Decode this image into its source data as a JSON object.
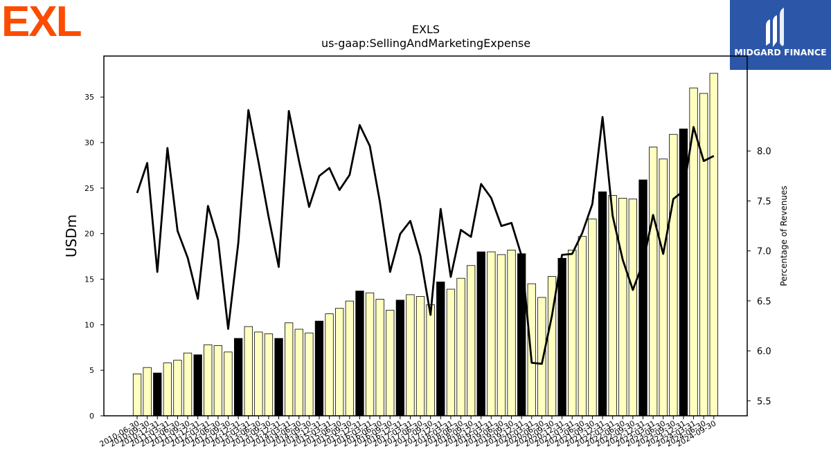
{
  "brand": {
    "company_logo_text": "EXL",
    "company_logo_color": "#fc4c02",
    "publisher_logo_text": "MIDGARD FINANCE",
    "publisher_bg_color": "#2c56a8"
  },
  "chart_data": {
    "type": "bar",
    "title": "EXLS",
    "subtitle": "us-gaap:SellingAndMarketingExpense",
    "ylabel": "USDm",
    "y2label": "Percentage of Revenues",
    "ylim": [
      0,
      39.5
    ],
    "y2lim": [
      5.35,
      8.95
    ],
    "yticks": [
      0,
      5,
      10,
      15,
      20,
      25,
      30,
      35
    ],
    "y2ticks": [
      5.5,
      6.0,
      6.5,
      7.0,
      7.5,
      8.0
    ],
    "bar_color": "#ffffc0",
    "highlight_color": "#000000",
    "line_color": "#000000",
    "categories": [
      "2010-06-30",
      "2010-09-30",
      "2010-12-31",
      "2011-03-31",
      "2011-06-30",
      "2011-09-30",
      "2011-12-31",
      "2012-03-31",
      "2012-06-30",
      "2012-09-30",
      "2012-12-31",
      "2013-03-31",
      "2013-06-30",
      "2013-09-30",
      "2013-12-31",
      "2014-03-31",
      "2014-06-30",
      "2014-09-30",
      "2014-12-31",
      "2015-03-31",
      "2015-06-30",
      "2015-09-30",
      "2015-12-31",
      "2016-03-31",
      "2016-06-30",
      "2016-09-30",
      "2016-12-31",
      "2017-03-31",
      "2017-06-30",
      "2017-09-30",
      "2017-12-31",
      "2018-03-31",
      "2018-06-30",
      "2018-09-30",
      "2018-12-31",
      "2019-03-31",
      "2019-06-30",
      "2019-09-30",
      "2019-12-31",
      "2020-03-31",
      "2020-06-30",
      "2020-09-30",
      "2020-12-31",
      "2021-03-31",
      "2021-06-30",
      "2021-09-30",
      "2021-12-31",
      "2022-03-31",
      "2022-06-30",
      "2022-09-30",
      "2022-12-31",
      "2023-03-31",
      "2023-06-30",
      "2023-09-30",
      "2023-12-31",
      "2024-03-31",
      "2024-06-30",
      "2024-09-30"
    ],
    "series": [
      {
        "name": "SellingAndMarketingExpense",
        "values": [
          4.6,
          5.3,
          4.7,
          5.8,
          6.1,
          6.9,
          6.7,
          7.8,
          7.7,
          7.0,
          8.5,
          9.8,
          9.2,
          9.0,
          8.5,
          10.2,
          9.5,
          9.1,
          10.4,
          11.2,
          11.8,
          12.6,
          13.7,
          13.5,
          12.8,
          11.6,
          12.7,
          13.3,
          13.1,
          12.2,
          14.7,
          13.9,
          15.1,
          16.5,
          18.0,
          18.0,
          17.7,
          18.2,
          17.8,
          14.5,
          13.0,
          15.3,
          17.3,
          18.2,
          19.7,
          21.6,
          24.6,
          24.2,
          23.9,
          23.8,
          25.9,
          29.5,
          28.2,
          30.9,
          31.5,
          36.0,
          35.4,
          37.6
        ]
      },
      {
        "name": "Percentage of Revenues",
        "values": [
          7.58,
          7.88,
          6.79,
          8.03,
          7.2,
          6.93,
          6.52,
          7.45,
          7.11,
          6.22,
          7.08,
          8.41,
          7.89,
          7.34,
          6.84,
          8.4,
          7.9,
          7.44,
          7.75,
          7.83,
          7.61,
          7.76,
          8.26,
          8.05,
          7.49,
          6.79,
          7.17,
          7.3,
          6.95,
          6.36,
          7.42,
          6.74,
          7.21,
          7.14,
          7.67,
          7.53,
          7.25,
          7.28,
          6.95,
          5.88,
          5.87,
          6.35,
          6.96,
          6.97,
          7.18,
          7.47,
          8.34,
          7.35,
          6.91,
          6.61,
          6.88,
          7.36,
          6.97,
          7.52,
          7.6,
          8.24,
          7.9,
          7.95
        ]
      }
    ]
  }
}
